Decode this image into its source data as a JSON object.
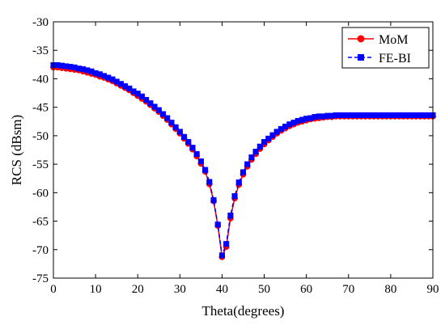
{
  "chart_data": {
    "type": "line",
    "title": "",
    "xlabel": "Theta(degrees)",
    "ylabel": "RCS (dBsm)",
    "xlim": [
      0,
      90
    ],
    "ylim": [
      -75,
      -30
    ],
    "xticks": [
      0,
      10,
      20,
      30,
      40,
      50,
      60,
      70,
      80,
      90
    ],
    "yticks": [
      -30,
      -35,
      -40,
      -45,
      -50,
      -55,
      -60,
      -65,
      -70,
      -75
    ],
    "grid": false,
    "legend_position": "top-right",
    "series": [
      {
        "name": "MoM",
        "color": "#ff0000",
        "line_style": "solid",
        "marker": "circle",
        "x": [
          0,
          1,
          2,
          3,
          4,
          5,
          6,
          7,
          8,
          9,
          10,
          11,
          12,
          13,
          14,
          15,
          16,
          17,
          18,
          19,
          20,
          21,
          22,
          23,
          24,
          25,
          26,
          27,
          28,
          29,
          30,
          31,
          32,
          33,
          34,
          35,
          36,
          37,
          38,
          39,
          40,
          41,
          42,
          43,
          44,
          45,
          46,
          47,
          48,
          49,
          50,
          51,
          52,
          53,
          54,
          55,
          56,
          57,
          58,
          59,
          60,
          61,
          62,
          63,
          64,
          65,
          66,
          67,
          68,
          69,
          70,
          71,
          72,
          73,
          74,
          75,
          76,
          77,
          78,
          79,
          80,
          81,
          82,
          83,
          84,
          85,
          86,
          87,
          88,
          89,
          90
        ],
        "y": [
          -38.0,
          -38.0,
          -38.1,
          -38.2,
          -38.3,
          -38.4,
          -38.5,
          -38.7,
          -38.9,
          -39.1,
          -39.3,
          -39.6,
          -39.8,
          -40.1,
          -40.4,
          -40.8,
          -41.2,
          -41.6,
          -42.0,
          -42.5,
          -43.0,
          -43.5,
          -44.0,
          -44.6,
          -45.2,
          -45.8,
          -46.5,
          -47.2,
          -48.0,
          -48.8,
          -49.6,
          -50.5,
          -51.4,
          -52.4,
          -53.6,
          -54.9,
          -56.3,
          -58.5,
          -61.5,
          -65.8,
          -71.3,
          -69.5,
          -64.5,
          -61.0,
          -58.6,
          -56.8,
          -55.4,
          -54.2,
          -53.2,
          -52.3,
          -51.5,
          -50.8,
          -50.2,
          -49.6,
          -49.1,
          -48.7,
          -48.3,
          -48.0,
          -47.7,
          -47.5,
          -47.3,
          -47.1,
          -47.0,
          -46.9,
          -46.8,
          -46.7,
          -46.7,
          -46.6,
          -46.6,
          -46.6,
          -46.6,
          -46.6,
          -46.6,
          -46.6,
          -46.6,
          -46.6,
          -46.6,
          -46.6,
          -46.6,
          -46.6,
          -46.6,
          -46.6,
          -46.6,
          -46.6,
          -46.6,
          -46.6,
          -46.6,
          -46.6,
          -46.6,
          -46.6,
          -46.6
        ]
      },
      {
        "name": "FE-BI",
        "color": "#0000ff",
        "line_style": "dashed",
        "marker": "square",
        "x": [
          0,
          1,
          2,
          3,
          4,
          5,
          6,
          7,
          8,
          9,
          10,
          11,
          12,
          13,
          14,
          15,
          16,
          17,
          18,
          19,
          20,
          21,
          22,
          23,
          24,
          25,
          26,
          27,
          28,
          29,
          30,
          31,
          32,
          33,
          34,
          35,
          36,
          37,
          38,
          39,
          40,
          41,
          42,
          43,
          44,
          45,
          46,
          47,
          48,
          49,
          50,
          51,
          52,
          53,
          54,
          55,
          56,
          57,
          58,
          59,
          60,
          61,
          62,
          63,
          64,
          65,
          66,
          67,
          68,
          69,
          70,
          71,
          72,
          73,
          74,
          75,
          76,
          77,
          78,
          79,
          80,
          81,
          82,
          83,
          84,
          85,
          86,
          87,
          88,
          89,
          90
        ],
        "y": [
          -37.6,
          -37.6,
          -37.7,
          -37.8,
          -37.9,
          -38.0,
          -38.2,
          -38.3,
          -38.5,
          -38.7,
          -39.0,
          -39.2,
          -39.5,
          -39.8,
          -40.1,
          -40.5,
          -40.9,
          -41.3,
          -41.7,
          -42.2,
          -42.6,
          -43.1,
          -43.7,
          -44.3,
          -44.9,
          -45.5,
          -46.2,
          -46.9,
          -47.7,
          -48.5,
          -49.3,
          -50.2,
          -51.1,
          -52.1,
          -53.2,
          -54.5,
          -56.0,
          -58.1,
          -61.3,
          -65.6,
          -71.0,
          -69.0,
          -64.0,
          -60.6,
          -58.2,
          -56.4,
          -55.0,
          -53.8,
          -52.8,
          -51.9,
          -51.1,
          -50.5,
          -49.9,
          -49.3,
          -48.8,
          -48.4,
          -48.0,
          -47.7,
          -47.4,
          -47.2,
          -47.0,
          -46.9,
          -46.7,
          -46.6,
          -46.6,
          -46.5,
          -46.5,
          -46.4,
          -46.4,
          -46.4,
          -46.4,
          -46.4,
          -46.4,
          -46.4,
          -46.4,
          -46.4,
          -46.4,
          -46.4,
          -46.4,
          -46.4,
          -46.4,
          -46.4,
          -46.4,
          -46.4,
          -46.4,
          -46.4,
          -46.4,
          -46.4,
          -46.4,
          -46.4,
          -46.4
        ]
      }
    ]
  }
}
